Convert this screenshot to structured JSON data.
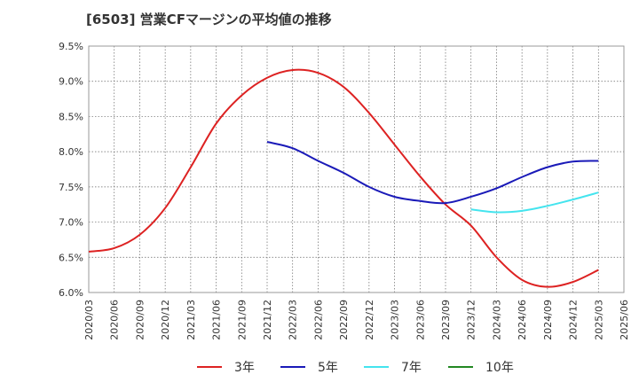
{
  "chart_data": {
    "type": "line",
    "title": "[6503]  営業CFマージンの平均値の推移",
    "xlabel": "",
    "ylabel": "",
    "x_ticks": [
      "2020/03",
      "2020/06",
      "2020/09",
      "2020/12",
      "2021/03",
      "2021/06",
      "2021/09",
      "2021/12",
      "2022/03",
      "2022/06",
      "2022/09",
      "2022/12",
      "2023/03",
      "2023/06",
      "2023/09",
      "2023/12",
      "2024/03",
      "2024/06",
      "2024/09",
      "2024/12",
      "2025/03",
      "2025/06"
    ],
    "y_ticks": [
      "6.0%",
      "6.5%",
      "7.0%",
      "7.5%",
      "8.0%",
      "8.5%",
      "9.0%",
      "9.5%"
    ],
    "ylim": [
      6.0,
      9.5
    ],
    "grid": true,
    "legend_position": "bottom",
    "series": [
      {
        "name": "3年",
        "color": "#dd2222",
        "points": [
          [
            "2020/03",
            6.58
          ],
          [
            "2020/06",
            6.63
          ],
          [
            "2020/09",
            6.82
          ],
          [
            "2020/12",
            7.2
          ],
          [
            "2021/03",
            7.78
          ],
          [
            "2021/06",
            8.4
          ],
          [
            "2021/09",
            8.8
          ],
          [
            "2021/12",
            9.05
          ],
          [
            "2022/03",
            9.16
          ],
          [
            "2022/06",
            9.12
          ],
          [
            "2022/09",
            8.92
          ],
          [
            "2022/12",
            8.55
          ],
          [
            "2023/03",
            8.1
          ],
          [
            "2023/06",
            7.65
          ],
          [
            "2023/09",
            7.25
          ],
          [
            "2023/12",
            6.95
          ],
          [
            "2024/03",
            6.5
          ],
          [
            "2024/06",
            6.18
          ],
          [
            "2024/09",
            6.08
          ],
          [
            "2024/12",
            6.15
          ],
          [
            "2025/03",
            6.32
          ]
        ]
      },
      {
        "name": "5年",
        "color": "#1a1ab8",
        "points": [
          [
            "2021/12",
            8.14
          ],
          [
            "2022/03",
            8.05
          ],
          [
            "2022/06",
            7.87
          ],
          [
            "2022/09",
            7.7
          ],
          [
            "2022/12",
            7.5
          ],
          [
            "2023/03",
            7.36
          ],
          [
            "2023/06",
            7.3
          ],
          [
            "2023/09",
            7.27
          ],
          [
            "2023/12",
            7.36
          ],
          [
            "2024/03",
            7.48
          ],
          [
            "2024/06",
            7.64
          ],
          [
            "2024/09",
            7.78
          ],
          [
            "2024/12",
            7.86
          ],
          [
            "2025/03",
            7.87
          ]
        ]
      },
      {
        "name": "7年",
        "color": "#44e4ee",
        "points": [
          [
            "2023/12",
            7.18
          ],
          [
            "2024/03",
            7.14
          ],
          [
            "2024/06",
            7.16
          ],
          [
            "2024/09",
            7.23
          ],
          [
            "2024/12",
            7.32
          ],
          [
            "2025/03",
            7.42
          ]
        ]
      },
      {
        "name": "10年",
        "color": "#228822",
        "points": []
      }
    ]
  }
}
